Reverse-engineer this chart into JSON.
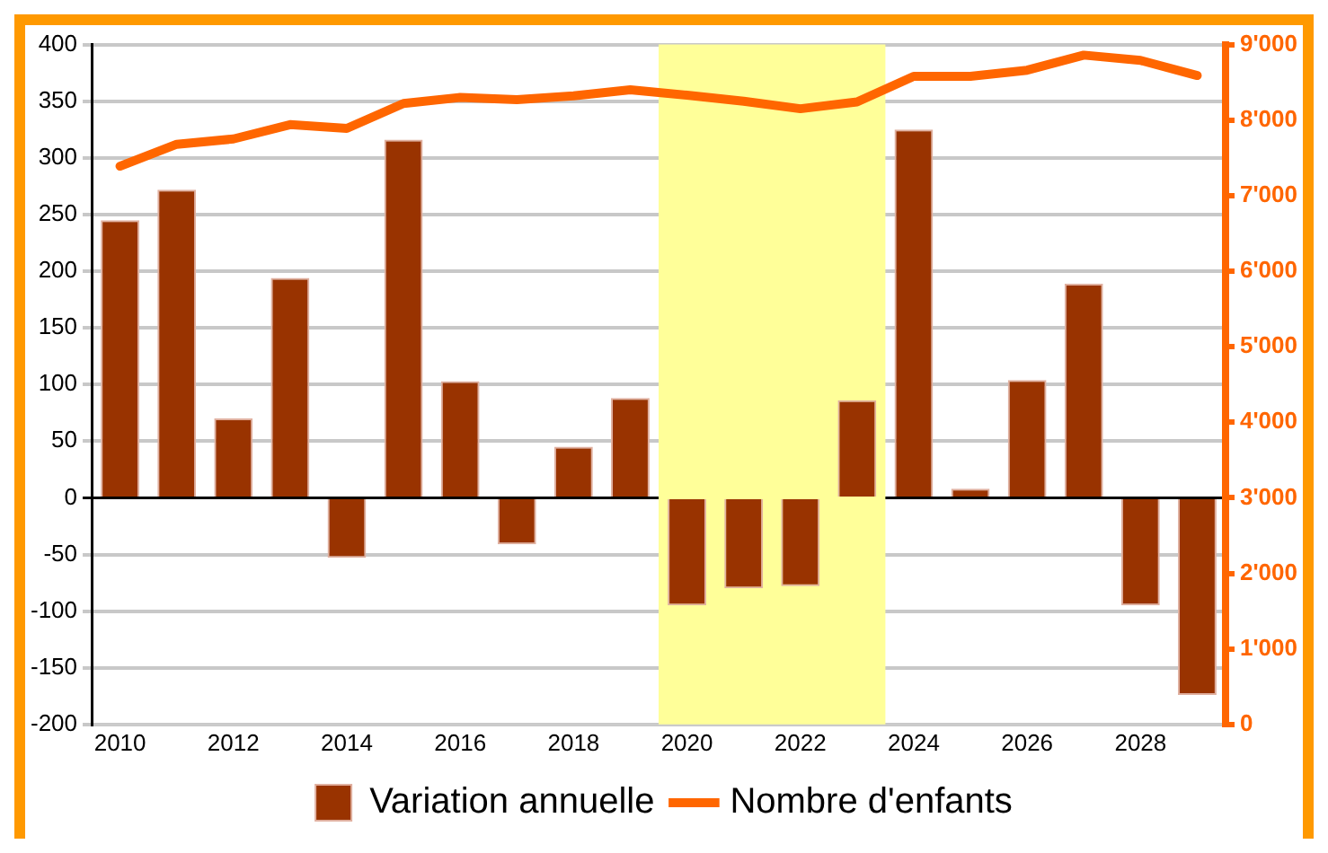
{
  "chart_data": {
    "type": "bar",
    "x": [
      2010,
      2011,
      2012,
      2013,
      2014,
      2015,
      2016,
      2017,
      2018,
      2019,
      2020,
      2021,
      2022,
      2023,
      2024,
      2025,
      2026,
      2027,
      2028,
      2029
    ],
    "xlim": [
      2009.5,
      2029.5
    ],
    "xticks": [
      2010,
      2012,
      2014,
      2016,
      2018,
      2020,
      2022,
      2024,
      2026,
      2028
    ],
    "ylim": [
      -200,
      400
    ],
    "yticks": [
      -200,
      -150,
      -100,
      -50,
      0,
      50,
      100,
      150,
      200,
      250,
      300,
      350,
      400
    ],
    "y2lim": [
      0,
      9000
    ],
    "y2ticks": [
      {
        "value": 0,
        "label": "0"
      },
      {
        "value": 1000,
        "label": "1'000"
      },
      {
        "value": 2000,
        "label": "2'000"
      },
      {
        "value": 3000,
        "label": "3'000"
      },
      {
        "value": 4000,
        "label": "4'000"
      },
      {
        "value": 5000,
        "label": "5'000"
      },
      {
        "value": 6000,
        "label": "6'000"
      },
      {
        "value": 7000,
        "label": "7'000"
      },
      {
        "value": 8000,
        "label": "8'000"
      },
      {
        "value": 9000,
        "label": "9'000"
      }
    ],
    "series": [
      {
        "name": "Variation annuelle",
        "color": "#993300",
        "values": [
          245,
          272,
          70,
          194,
          -53,
          316,
          103,
          -41,
          45,
          88,
          -95,
          -80,
          -78,
          86,
          325,
          8,
          104,
          189,
          -95,
          -174
        ]
      },
      {
        "name": "Nombre d'enfants",
        "type": "line",
        "axis": "y2",
        "color": "#ff6600",
        "values": [
          7390,
          7680,
          7750,
          7940,
          7890,
          8220,
          8300,
          8270,
          8320,
          8400,
          8330,
          8250,
          8150,
          8240,
          8580,
          8580,
          8660,
          8860,
          8790,
          8590
        ]
      }
    ],
    "bands": [
      {
        "axis": "x",
        "from": 2019.5,
        "to": 2023.5,
        "color": "#ffff99"
      }
    ],
    "grid": "y",
    "legend": "bottom",
    "marker": "none"
  }
}
